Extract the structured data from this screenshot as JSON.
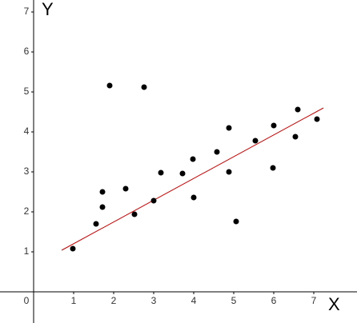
{
  "chart_data": {
    "type": "scatter",
    "x_label": "X",
    "y_label": "Y",
    "x": [
      0.98,
      1.56,
      1.72,
      1.72,
      1.9,
      2.3,
      2.52,
      2.76,
      3.0,
      3.18,
      3.72,
      3.98,
      4.0,
      4.58,
      4.88,
      4.88,
      5.06,
      5.54,
      6.0,
      5.98,
      6.54,
      6.6,
      7.08
    ],
    "values": [
      1.08,
      1.7,
      2.12,
      2.5,
      5.16,
      2.58,
      1.94,
      5.12,
      2.28,
      2.98,
      2.96,
      3.32,
      2.36,
      3.5,
      4.1,
      3.0,
      1.76,
      3.78,
      4.16,
      3.1,
      3.88,
      4.56,
      4.32
    ],
    "color": "#000000",
    "trendline": {
      "x": [
        0.7,
        7.24
      ],
      "y": [
        1.04,
        4.6
      ],
      "color": "#cc0000"
    },
    "xlim": [
      -0.84,
      8.08
    ],
    "ylim": [
      -0.78,
      7.3
    ],
    "xticks": [
      0,
      1,
      2,
      3,
      4,
      5,
      6,
      7
    ],
    "yticks": [
      1,
      2,
      3,
      4,
      5,
      6,
      7
    ],
    "grid": false
  }
}
